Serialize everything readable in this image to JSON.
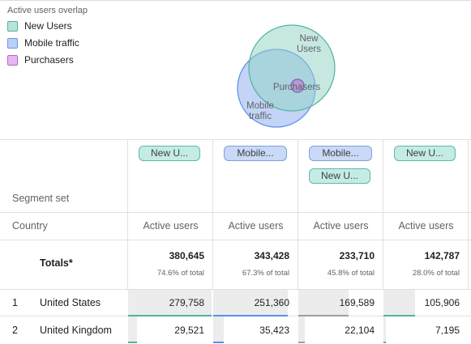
{
  "legend": {
    "title": "Active users overlap",
    "items": [
      {
        "label": "New Users",
        "color": "#b7e3da",
        "border": "#4fb3a0"
      },
      {
        "label": "Mobile traffic",
        "color": "#b9cff5",
        "border": "#6f93e0"
      },
      {
        "label": "Purchasers",
        "color": "#e8b6f2",
        "border": "#b468c8"
      }
    ]
  },
  "venn": {
    "new_users_label": [
      "New",
      "Users"
    ],
    "mobile_label": [
      "Mobile",
      "traffic"
    ],
    "purchasers_label": "Purchasers"
  },
  "table": {
    "segment_set_label": "Segment set",
    "dimension_label": "Country",
    "totals_label": "Totals*",
    "columns": [
      {
        "chips": [
          {
            "text": "New U...",
            "color": "green"
          }
        ],
        "metric": "Active users",
        "total": "380,645",
        "pct": "74.6% of total",
        "accent": "#4fb3a0"
      },
      {
        "chips": [
          {
            "text": "Mobile...",
            "color": "blue"
          }
        ],
        "metric": "Active users",
        "total": "343,428",
        "pct": "67.3% of total",
        "accent": "#5b8def"
      },
      {
        "chips": [
          {
            "text": "Mobile...",
            "color": "blue"
          },
          {
            "text": "New U...",
            "color": "green"
          }
        ],
        "metric": "Active users",
        "total": "233,710",
        "pct": "45.8% of total",
        "accent": "#9e9e9e"
      },
      {
        "chips": [
          {
            "text": "New U...",
            "color": "green"
          }
        ],
        "metric": "Active users",
        "total": "142,787",
        "pct": "28.0% of total",
        "accent": "#4fb3a0"
      }
    ],
    "rows": [
      {
        "rank": "1",
        "country": "United States",
        "values": [
          "279,758",
          "251,360",
          "169,589",
          "105,906"
        ],
        "fractions": [
          1.0,
          0.898,
          0.606,
          0.379
        ]
      },
      {
        "rank": "2",
        "country": "United Kingdom",
        "values": [
          "29,521",
          "35,423",
          "22,104",
          "7,195"
        ],
        "fractions": [
          0.106,
          0.127,
          0.079,
          0.026
        ]
      }
    ]
  }
}
